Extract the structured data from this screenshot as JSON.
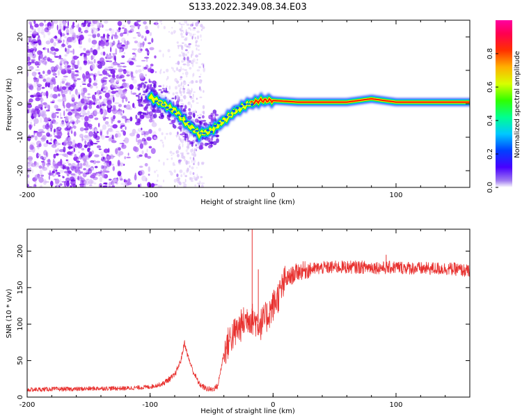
{
  "title": "S133.2022.349.08.34.E03",
  "colors": {
    "snr_line": "#e8312f",
    "spec_strong": "#7a00e8",
    "spec_faint": "#d9c2f7",
    "signal_core": "#ff1e00",
    "signal_mid": "#00d84a",
    "signal_edge": "#0a3cff"
  },
  "chart_data": [
    {
      "type": "heatmap",
      "name": "spectrogram",
      "xlabel": "Height of straight line (km)",
      "ylabel": "Frequency (Hz)",
      "xlim": [
        -200,
        160
      ],
      "ylim": [
        -25,
        25
      ],
      "x_ticks": [
        "-200",
        "-100",
        "0",
        "100"
      ],
      "x_tick_values": [
        -200,
        -100,
        0,
        100
      ],
      "y_ticks": [
        "-20",
        "-10",
        "0",
        "10",
        "20"
      ],
      "y_tick_values": [
        -20,
        -10,
        0,
        10,
        20
      ],
      "colorbar": {
        "label": "Normalized spectral amplitude",
        "range": [
          0,
          1
        ],
        "ticks": [
          "0.0",
          "0.2",
          "0.4",
          "0.6",
          "0.8"
        ],
        "tick_values": [
          0.0,
          0.2,
          0.4,
          0.6,
          0.8
        ]
      },
      "signal_track": {
        "x": [
          -100,
          -90,
          -80,
          -70,
          -60,
          -50,
          -40,
          -30,
          -20,
          -10,
          0,
          20,
          40,
          60,
          80,
          100,
          120,
          160
        ],
        "freq_hz": [
          2,
          0,
          -2,
          -6,
          -9,
          -8,
          -5,
          -2,
          0,
          1,
          1,
          0.5,
          0.5,
          0.5,
          1.5,
          0.5,
          0.5,
          0.5
        ]
      }
    },
    {
      "type": "line",
      "name": "snr",
      "xlabel": "Height of straight line (km)",
      "ylabel": "SNR (10 * v/v)",
      "xlim": [
        -200,
        160
      ],
      "ylim": [
        0,
        230
      ],
      "x_ticks": [
        "-200",
        "-100",
        "0",
        "100"
      ],
      "x_tick_values": [
        -200,
        -100,
        0,
        100
      ],
      "y_ticks": [
        "0",
        "50",
        "100",
        "150",
        "200"
      ],
      "y_tick_values": [
        0,
        50,
        100,
        150,
        200
      ],
      "series": [
        {
          "name": "SNR",
          "x": [
            -200,
            -180,
            -160,
            -140,
            -120,
            -100,
            -90,
            -80,
            -75,
            -72,
            -70,
            -65,
            -60,
            -55,
            -50,
            -45,
            -40,
            -35,
            -30,
            -25,
            -20,
            -15,
            -10,
            -5,
            0,
            5,
            10,
            20,
            30,
            40,
            50,
            60,
            70,
            80,
            90,
            100,
            110,
            120,
            130,
            140,
            150,
            160
          ],
          "y": [
            10,
            11,
            11,
            12,
            12,
            14,
            18,
            30,
            50,
            75,
            60,
            35,
            18,
            12,
            10,
            15,
            60,
            80,
            90,
            100,
            110,
            105,
            100,
            110,
            125,
            140,
            160,
            172,
            175,
            177,
            178,
            178,
            178,
            178,
            177,
            178,
            177,
            176,
            176,
            176,
            175,
            172
          ]
        }
      ],
      "peaks": {
        "x": [
          -17,
          -12,
          92
        ],
        "y": [
          230,
          175,
          195
        ]
      }
    }
  ]
}
